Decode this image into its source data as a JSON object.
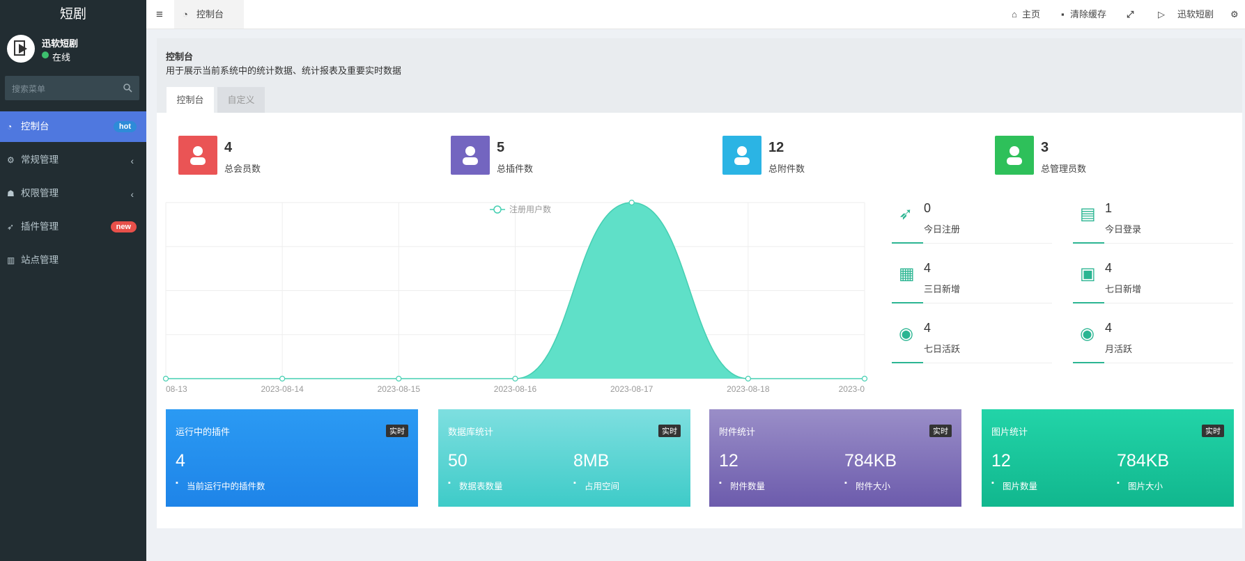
{
  "sidebar": {
    "logo": "短剧",
    "user": {
      "name": "迅软短剧",
      "status": "在线"
    },
    "search_placeholder": "搜索菜单",
    "menu": [
      {
        "label": "控制台",
        "badge": "hot"
      },
      {
        "label": "常规管理"
      },
      {
        "label": "权限管理"
      },
      {
        "label": "插件管理",
        "badge": "new"
      },
      {
        "label": "站点管理"
      }
    ]
  },
  "topbar": {
    "tab": "控制台",
    "links": [
      "主页",
      "清除缓存",
      "迅软短剧"
    ]
  },
  "page": {
    "title": "控制台",
    "description": "用于展示当前系统中的统计数据、统计报表及重要实时数据",
    "tabs": [
      "控制台",
      "自定义"
    ]
  },
  "stats": [
    {
      "value": 4,
      "label": "总会员数"
    },
    {
      "value": 5,
      "label": "总插件数"
    },
    {
      "value": 12,
      "label": "总附件数"
    },
    {
      "value": 3,
      "label": "总管理员数"
    }
  ],
  "chart_data": {
    "type": "area",
    "categories": [
      "08-13",
      "2023-08-14",
      "2023-08-15",
      "2023-08-16",
      "2023-08-17",
      "2023-08-18",
      "2023-0"
    ],
    "series": [
      {
        "name": "注册用户数",
        "color": "#5fe0c8",
        "values": [
          0,
          0,
          0,
          0,
          4,
          0,
          0
        ]
      }
    ],
    "ylim": [
      0,
      4
    ],
    "grid": true,
    "legend": "top"
  },
  "quick_stats": [
    {
      "value": 0,
      "label": "今日注册"
    },
    {
      "value": 1,
      "label": "今日登录"
    },
    {
      "value": 4,
      "label": "三日新增"
    },
    {
      "value": 4,
      "label": "七日新增"
    },
    {
      "value": 4,
      "label": "七日活跃"
    },
    {
      "value": 4,
      "label": "月活跃"
    }
  ],
  "cards": [
    {
      "title": "运行中的插件",
      "badge": "实时",
      "items": [
        {
          "value": 4,
          "label": "当前运行中的插件数"
        }
      ]
    },
    {
      "title": "数据库统计",
      "badge": "实时",
      "items": [
        {
          "value": 50,
          "label": "数据表数量"
        },
        {
          "value": "8MB",
          "label": "占用空间"
        }
      ]
    },
    {
      "title": "附件统计",
      "badge": "实时",
      "items": [
        {
          "value": 12,
          "label": "附件数量"
        },
        {
          "value": "784KB",
          "label": "附件大小"
        }
      ]
    },
    {
      "title": "图片统计",
      "badge": "实时",
      "items": [
        {
          "value": 12,
          "label": "图片数量"
        },
        {
          "value": "784KB",
          "label": "图片大小"
        }
      ]
    }
  ]
}
